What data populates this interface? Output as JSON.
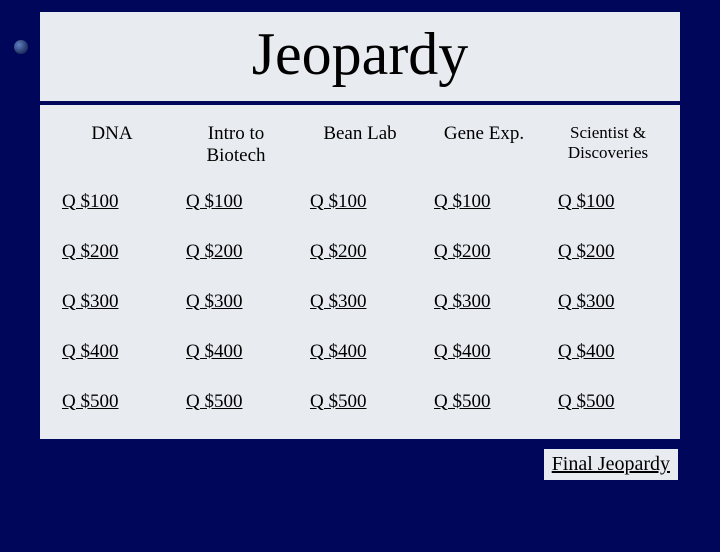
{
  "title": "Jeopardy",
  "background_color": "#000659",
  "board_bg": "#e8ebf0",
  "text_color": "#000000",
  "categories": [
    "DNA",
    "Intro to Biotech",
    "Bean Lab",
    "Gene Exp.",
    "Scientist & Discoveries"
  ],
  "values": [
    100,
    200,
    300,
    400,
    500
  ],
  "cell_prefix": "Q $",
  "final": "Final Jeopardy",
  "title_fontsize": 60,
  "header_fontsize": 19,
  "cell_fontsize": 19,
  "final_fontsize": 20
}
